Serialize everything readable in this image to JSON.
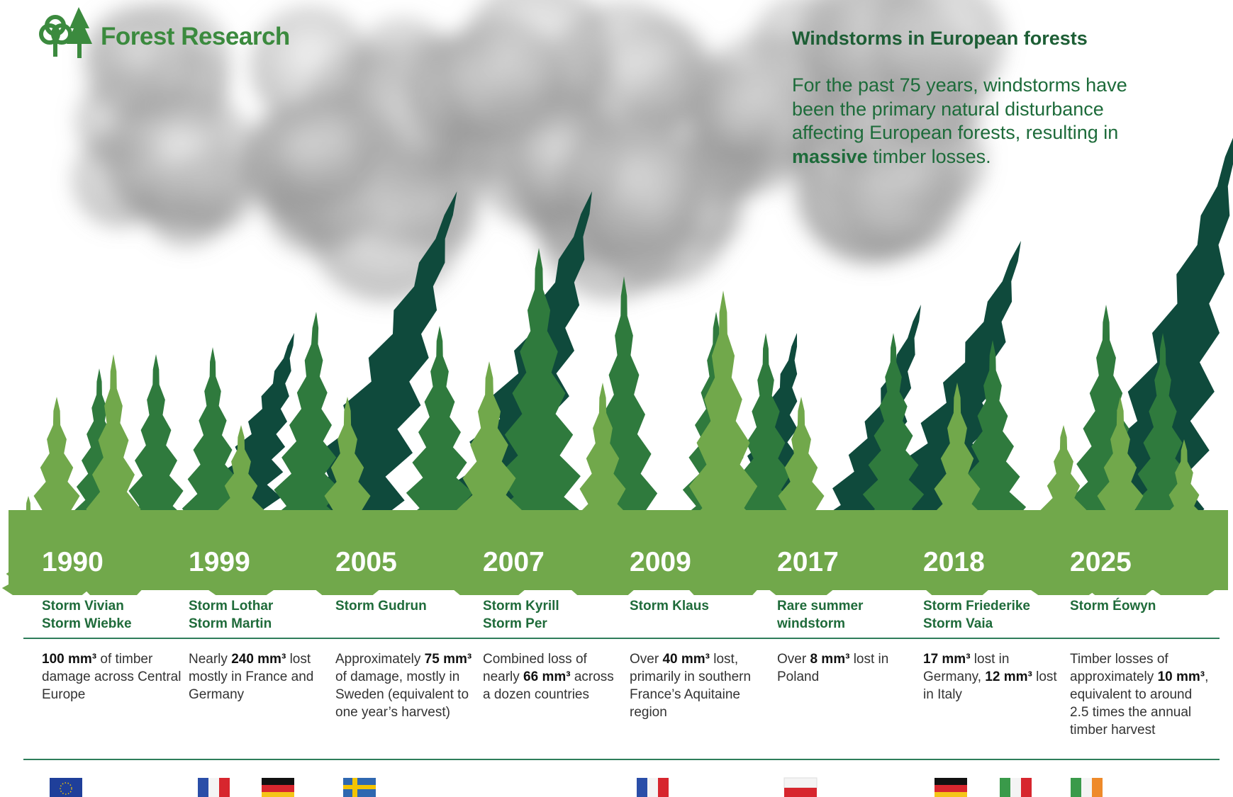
{
  "header": {
    "brand": "Forest Research",
    "title": "Windstorms in European forests",
    "intro": [
      {
        "text": "For the past 75 years, windstorms have been the primary natural disturbance affecting European forests, resulting in "
      },
      {
        "text": "massive",
        "bold": true
      },
      {
        "text": " timber losses."
      }
    ]
  },
  "timeline": [
    {
      "year": "1990",
      "storms": [
        "Storm Vivian",
        "Storm Wiebke"
      ],
      "description": [
        {
          "text": "100 mm³",
          "bold": true
        },
        {
          "text": " of timber damage across Central Europe"
        }
      ]
    },
    {
      "year": "1999",
      "storms": [
        "Storm Lothar",
        "Storm Martin"
      ],
      "description": [
        {
          "text": "Nearly "
        },
        {
          "text": "240 mm³",
          "bold": true
        },
        {
          "text": " lost mostly in France and Germany"
        }
      ]
    },
    {
      "year": "2005",
      "storms": [
        "Storm Gudrun"
      ],
      "description": [
        {
          "text": "Approximately "
        },
        {
          "text": "75 mm³",
          "bold": true
        },
        {
          "text": " of damage, mostly in Sweden (equivalent to one year’s harvest)"
        }
      ]
    },
    {
      "year": "2007",
      "storms": [
        "Storm Kyrill",
        "Storm Per"
      ],
      "description": [
        {
          "text": "Combined loss of nearly "
        },
        {
          "text": "66 mm³",
          "bold": true
        },
        {
          "text": " across a dozen countries"
        }
      ]
    },
    {
      "year": "2009",
      "storms": [
        "Storm Klaus"
      ],
      "description": [
        {
          "text": "Over "
        },
        {
          "text": "40 mm³",
          "bold": true
        },
        {
          "text": " lost, primarily in southern France’s Aquitaine region"
        }
      ]
    },
    {
      "year": "2017",
      "storms": [
        "Rare summer windstorm"
      ],
      "description": [
        {
          "text": "Over "
        },
        {
          "text": "8 mm³",
          "bold": true
        },
        {
          "text": " lost in Poland"
        }
      ]
    },
    {
      "year": "2018",
      "storms": [
        "Storm Friederike",
        "Storm Vaia"
      ],
      "description": [
        {
          "text": "17 mm³",
          "bold": true
        },
        {
          "text": " lost in Germany, "
        },
        {
          "text": "12 mm³",
          "bold": true
        },
        {
          "text": " lost in Italy"
        }
      ]
    },
    {
      "year": "2025",
      "storms": [
        "Storm Éowyn"
      ],
      "description": [
        {
          "text": "Timber losses of approximately "
        },
        {
          "text": "10 mm³",
          "bold": true
        },
        {
          "text": ", equivalent to around 2.5 times the annual timber harvest"
        }
      ]
    }
  ]
}
